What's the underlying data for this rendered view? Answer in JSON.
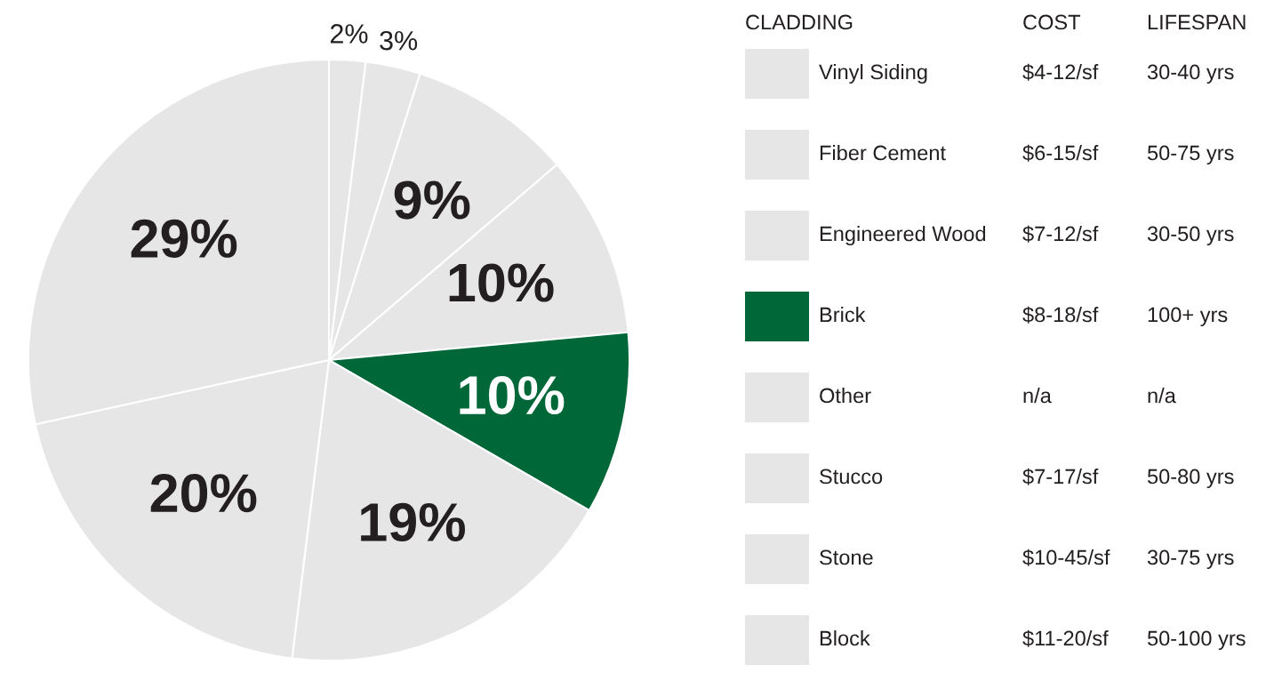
{
  "chart_data": {
    "type": "pie",
    "categories": [
      "Block",
      "Stone",
      "Stucco",
      "Other",
      "Brick",
      "Engineered Wood",
      "Fiber Cement",
      "Vinyl Siding"
    ],
    "values": [
      2,
      3,
      9,
      10,
      10,
      19,
      20,
      29
    ],
    "colors": [
      "#e6e6e6",
      "#e6e6e6",
      "#e6e6e6",
      "#e6e6e6",
      "#006838",
      "#e6e6e6",
      "#e6e6e6",
      "#e6e6e6"
    ],
    "value_labels": [
      "2%",
      "3%",
      "9%",
      "10%",
      "10%",
      "19%",
      "20%",
      "29%"
    ],
    "legend": "right",
    "legend_title": "CLADDING",
    "annotations": [
      "COST",
      "LIFESPAN",
      "$4-12/sf",
      "30-40 yrs",
      "$6-15/sf",
      "50-75 yrs",
      "$7-12/sf",
      "30-50 yrs",
      "$8-18/sf",
      "100+ yrs",
      "n/a",
      "n/a",
      "$7-17/sf",
      "50-80 yrs",
      "$10-45/sf",
      "30-75 yrs",
      "$11-20/sf",
      "50-100 yrs"
    ]
  }
}
